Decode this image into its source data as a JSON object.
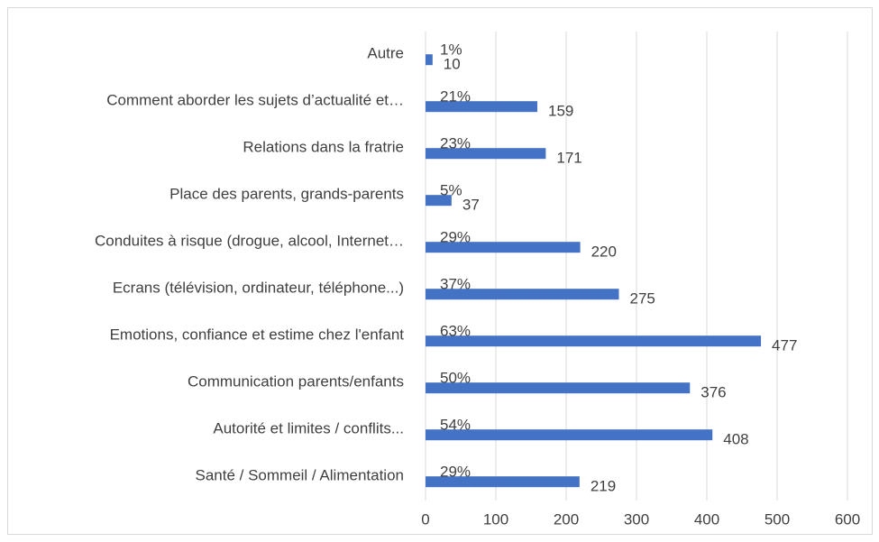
{
  "chart_data": {
    "type": "bar",
    "orientation": "horizontal",
    "categories": [
      "Autre",
      "Comment aborder les sujets d’actualité et…",
      "Relations dans la fratrie",
      "Place des parents, grands-parents",
      "Conduites à risque (drogue, alcool, Internet…",
      "Ecrans (télévision, ordinateur, téléphone...)",
      "Emotions, confiance et estime chez l'enfant",
      "Communication parents/enfants",
      "Autorité et limites / conflits...",
      "Santé / Sommeil / Alimentation"
    ],
    "values": [
      10,
      159,
      171,
      37,
      220,
      275,
      477,
      376,
      408,
      219
    ],
    "percent_labels": [
      "1%",
      "21%",
      "23%",
      "5%",
      "29%",
      "37%",
      "63%",
      "50%",
      "54%",
      "29%"
    ],
    "color": "#4472c4",
    "xlim": [
      0,
      600
    ],
    "xticks": [
      0,
      100,
      200,
      300,
      400,
      500,
      600
    ],
    "grid": true
  }
}
